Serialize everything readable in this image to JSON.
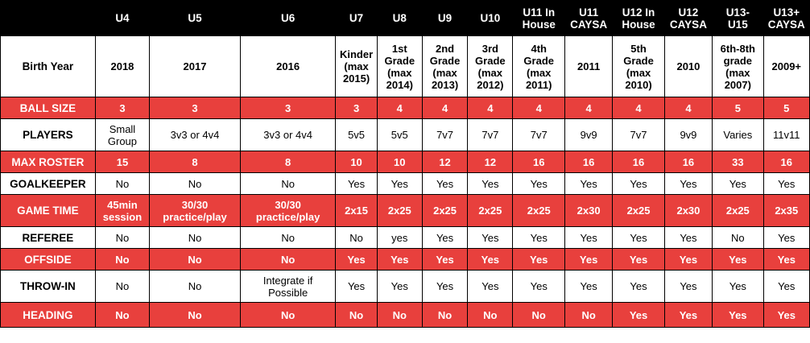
{
  "columns": [
    "U4",
    "U5",
    "U6",
    "U7",
    "U8",
    "U9",
    "U10",
    "U11 In\nHouse",
    "U11\nCAYSA",
    "U12 In\nHouse",
    "U12\nCAYSA",
    "U13-\nU15",
    "U13+\nCAYSA"
  ],
  "rows": [
    {
      "label": "Birth Year",
      "style": "white",
      "values": [
        "2018",
        "2017",
        "2016",
        "Kinder\n(max\n2015)",
        "1st\nGrade\n(max\n2014)",
        "2nd\nGrade\n(max\n2013)",
        "3rd\nGrade\n(max\n2012)",
        "4th\nGrade\n(max\n2011)",
        "2011",
        "5th\nGrade\n(max\n2010)",
        "2010",
        "6th-8th\ngrade\n(max\n2007)",
        "2009+"
      ]
    },
    {
      "label": "BALL SIZE",
      "style": "red",
      "values": [
        "3",
        "3",
        "3",
        "3",
        "4",
        "4",
        "4",
        "4",
        "4",
        "4",
        "4",
        "5",
        "5"
      ]
    },
    {
      "label": "PLAYERS",
      "style": "white",
      "values": [
        "Small\nGroup",
        "3v3 or 4v4",
        "3v3 or 4v4",
        "5v5",
        "5v5",
        "7v7",
        "7v7",
        "7v7",
        "9v9",
        "7v7",
        "9v9",
        "Varies",
        "11v11"
      ]
    },
    {
      "label": "MAX ROSTER",
      "style": "red",
      "values": [
        "15",
        "8",
        "8",
        "10",
        "10",
        "12",
        "12",
        "16",
        "16",
        "16",
        "16",
        "33",
        "16"
      ]
    },
    {
      "label": "GOALKEEPER",
      "style": "white",
      "values": [
        "No",
        "No",
        "No",
        "Yes",
        "Yes",
        "Yes",
        "Yes",
        "Yes",
        "Yes",
        "Yes",
        "Yes",
        "Yes",
        "Yes"
      ]
    },
    {
      "label": "GAME TIME",
      "style": "red",
      "values": [
        "45min\nsession",
        "30/30\npractice/play",
        "30/30\npractice/play",
        "2x15",
        "2x25",
        "2x25",
        "2x25",
        "2x25",
        "2x30",
        "2x25",
        "2x30",
        "2x25",
        "2x35"
      ]
    },
    {
      "label": "REFEREE",
      "style": "white",
      "values": [
        "No",
        "No",
        "No",
        "No",
        "yes",
        "Yes",
        "Yes",
        "Yes",
        "Yes",
        "Yes",
        "Yes",
        "No",
        "Yes"
      ]
    },
    {
      "label": "OFFSIDE",
      "style": "red",
      "values": [
        "No",
        "No",
        "No",
        "Yes",
        "Yes",
        "Yes",
        "Yes",
        "Yes",
        "Yes",
        "Yes",
        "Yes",
        "Yes",
        "Yes"
      ]
    },
    {
      "label": "THROW-IN",
      "style": "white",
      "values": [
        "No",
        "No",
        "Integrate if\nPossible",
        "Yes",
        "Yes",
        "Yes",
        "Yes",
        "Yes",
        "Yes",
        "Yes",
        "Yes",
        "Yes",
        "Yes"
      ]
    },
    {
      "label": "HEADING",
      "style": "red",
      "values": [
        "No",
        "No",
        "No",
        "No",
        "No",
        "No",
        "No",
        "No",
        "No",
        "Yes",
        "Yes",
        "Yes",
        "Yes"
      ]
    }
  ],
  "colors": {
    "header_bg": "#000000",
    "red_row": "#e8403d",
    "white_row": "#ffffff"
  }
}
